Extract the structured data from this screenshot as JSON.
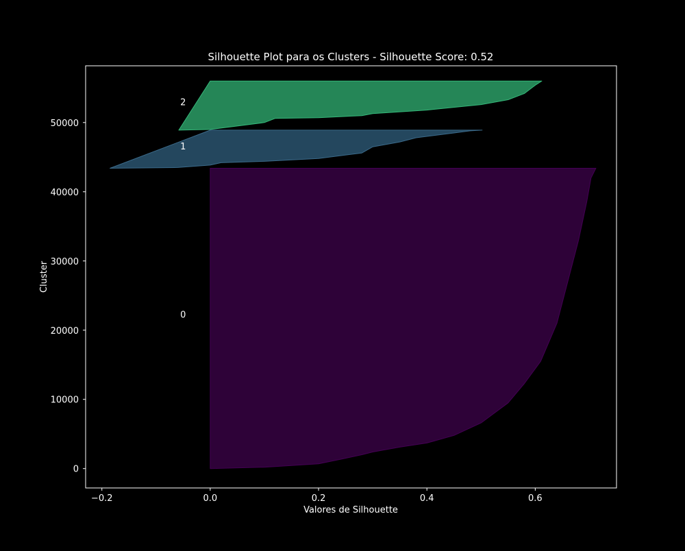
{
  "chart_data": {
    "type": "area",
    "title": "Silhouette Plot para os Clusters - Silhouette Score: 0.52",
    "xlabel": "Valores de Silhouette",
    "ylabel": "Cluster",
    "xlim": [
      -0.23,
      0.75
    ],
    "ylim": [
      -2800,
      58200
    ],
    "xticks": [
      -0.2,
      0.0,
      0.2,
      0.4,
      0.6
    ],
    "xtick_labels": [
      "−0.2",
      "0.0",
      "0.2",
      "0.4",
      "0.6"
    ],
    "yticks": [
      0,
      10000,
      20000,
      30000,
      40000,
      50000
    ],
    "ytick_labels": [
      "0",
      "10000",
      "20000",
      "30000",
      "40000",
      "50000"
    ],
    "grid": false,
    "background": "#000000",
    "clusters": [
      {
        "label": "0",
        "label_position": {
          "x": -0.05,
          "y": 22200
        },
        "color": "#2e0238",
        "edge_color": "#440154",
        "profile": [
          [
            0.0,
            0
          ],
          [
            0.1,
            200
          ],
          [
            0.2,
            700
          ],
          [
            0.25,
            1500
          ],
          [
            0.28,
            2000
          ],
          [
            0.3,
            2400
          ],
          [
            0.35,
            3100
          ],
          [
            0.4,
            3700
          ],
          [
            0.45,
            4800
          ],
          [
            0.5,
            6600
          ],
          [
            0.55,
            9500
          ],
          [
            0.58,
            12300
          ],
          [
            0.61,
            15500
          ],
          [
            0.64,
            21000
          ],
          [
            0.66,
            27000
          ],
          [
            0.68,
            33000
          ],
          [
            0.695,
            38500
          ],
          [
            0.703,
            42000
          ],
          [
            0.712,
            43400
          ],
          [
            0.0,
            43400
          ]
        ]
      },
      {
        "label": "1",
        "label_position": {
          "x": -0.05,
          "y": 46500
        },
        "color": "#24475e",
        "edge_color": "#3b6a8a",
        "profile": [
          [
            -0.185,
            43400
          ],
          [
            -0.06,
            43500
          ],
          [
            0.0,
            43850
          ],
          [
            0.02,
            44200
          ],
          [
            0.1,
            44400
          ],
          [
            0.2,
            44800
          ],
          [
            0.28,
            45600
          ],
          [
            0.3,
            46500
          ],
          [
            0.35,
            47200
          ],
          [
            0.38,
            47800
          ],
          [
            0.45,
            48500
          ],
          [
            0.48,
            48800
          ],
          [
            0.502,
            48900
          ],
          [
            0.0,
            48900
          ]
        ]
      },
      {
        "label": "2",
        "label_position": {
          "x": -0.05,
          "y": 52900
        },
        "color": "#258657",
        "edge_color": "#35b779",
        "profile": [
          [
            -0.058,
            48900
          ],
          [
            0.0,
            49000
          ],
          [
            0.03,
            49300
          ],
          [
            0.1,
            50000
          ],
          [
            0.12,
            50600
          ],
          [
            0.2,
            50700
          ],
          [
            0.28,
            51000
          ],
          [
            0.3,
            51300
          ],
          [
            0.4,
            51800
          ],
          [
            0.5,
            52600
          ],
          [
            0.55,
            53300
          ],
          [
            0.58,
            54200
          ],
          [
            0.6,
            55400
          ],
          [
            0.612,
            56000
          ],
          [
            0.0,
            56000
          ]
        ]
      }
    ]
  }
}
